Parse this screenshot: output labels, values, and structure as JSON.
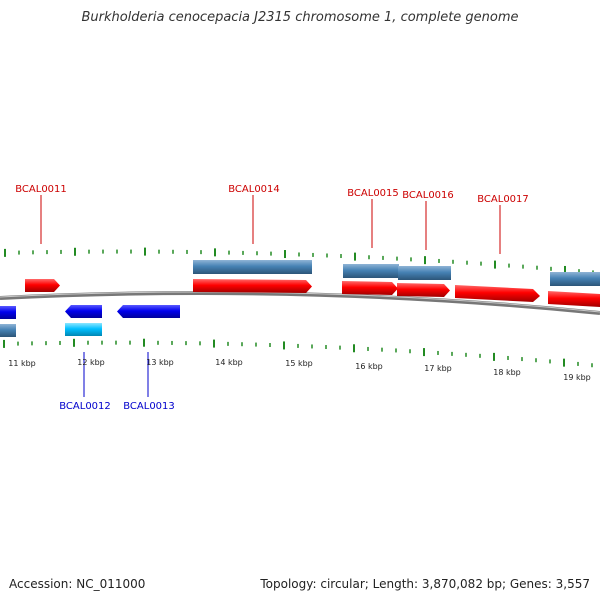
{
  "title": "Burkholderia cenocepacia J2315 chromosome 1, complete genome",
  "footer": {
    "accession": "Accession: NC_011000",
    "topology": "Topology: circular; Length: 3,870,082 bp; Genes: 3,557"
  },
  "colors": {
    "forward_gene": "#ff0000",
    "forward_label": "#cc0000",
    "reverse_gene": "#0000ee",
    "reverse_label": "#0000cc",
    "forward_cds_bar": "#4682b4",
    "light_cds_bar": "#00bfff",
    "tick": "#228b22",
    "backbone": "#808080"
  },
  "scale_labels": [
    "11 kbp",
    "12 kbp",
    "13 kbp",
    "14 kbp",
    "15 kbp",
    "16 kbp",
    "17 kbp",
    "18 kbp",
    "19 kbp"
  ],
  "genes": {
    "forward": [
      "BCAL0011",
      "BCAL0014",
      "BCAL0015",
      "BCAL0016",
      "BCAL0017"
    ],
    "reverse": [
      "BCAL0012",
      "BCAL0013"
    ]
  }
}
